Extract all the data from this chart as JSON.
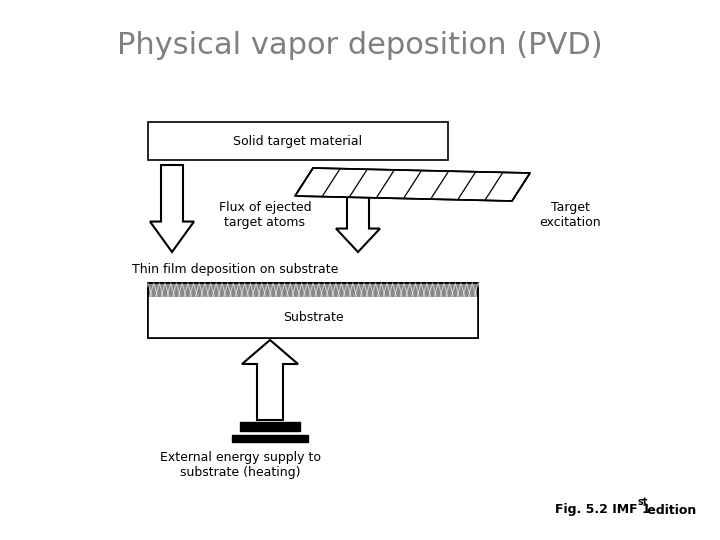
{
  "title": "Physical vapor deposition (PVD)",
  "title_color": "#7f7f7f",
  "title_fontsize": 22,
  "background_color": "#ffffff",
  "labels": {
    "solid_target": "Solid target material",
    "flux": "Flux of ejected\ntarget atoms",
    "target_excitation": "Target\nexcitation",
    "thin_film": "Thin film deposition on substrate",
    "substrate": "Substrate",
    "external_energy": "External energy supply to\nsubstrate (heating)"
  },
  "caption_main": "Fig. 5.2 IMF 1",
  "caption_super": "st",
  "caption_end": " edition"
}
